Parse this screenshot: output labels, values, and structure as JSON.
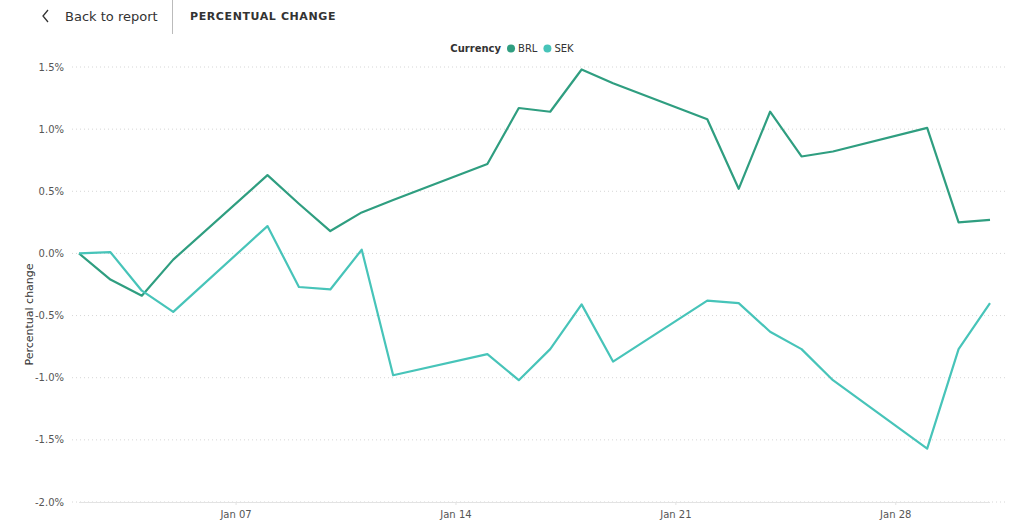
{
  "header": {
    "back": "Back to report"
  },
  "chart_data": {
    "type": "line",
    "title": "PERCENTUAL CHANGE",
    "y_label": "Percentual change",
    "legend_title": "Currency",
    "legend": "top",
    "grid": true,
    "x": [
      2,
      3,
      4,
      5,
      8,
      9,
      10,
      11,
      12,
      15,
      16,
      17,
      18,
      19,
      22,
      23,
      24,
      25,
      26,
      29,
      30,
      31
    ],
    "xlim": [
      2,
      31
    ],
    "xticks": [
      {
        "value": 7,
        "label": "Jan 07"
      },
      {
        "value": 14,
        "label": "Jan 14"
      },
      {
        "value": 21,
        "label": "Jan 21"
      },
      {
        "value": 28,
        "label": "Jan 28"
      }
    ],
    "ylim": [
      -2.0,
      1.5
    ],
    "yticks": [
      {
        "value": -2.0,
        "label": "-2.0%"
      },
      {
        "value": -1.5,
        "label": "-1.5%"
      },
      {
        "value": -1.0,
        "label": "-1.0%"
      },
      {
        "value": -0.5,
        "label": "-0.5%"
      },
      {
        "value": 0,
        "label": "0.0%"
      },
      {
        "value": 0.5,
        "label": "0.5%"
      },
      {
        "value": 1.0,
        "label": "1.0%"
      },
      {
        "value": 1.5,
        "label": "1.5%"
      }
    ],
    "series": [
      {
        "name": "BRL",
        "color": "#2f9e80",
        "values": [
          0.0,
          -0.21,
          -0.34,
          -0.05,
          0.63,
          0.4,
          0.18,
          0.33,
          0.43,
          0.72,
          1.17,
          1.14,
          1.48,
          1.37,
          1.08,
          0.52,
          1.14,
          0.78,
          0.82,
          1.01,
          0.25,
          0.27
        ]
      },
      {
        "name": "SEK",
        "color": "#47c4b9",
        "values": [
          0.0,
          0.01,
          -0.3,
          -0.47,
          0.22,
          -0.27,
          -0.29,
          0.03,
          -0.98,
          -0.81,
          -1.02,
          -0.77,
          -0.41,
          -0.87,
          -0.38,
          -0.4,
          -0.63,
          -0.77,
          -1.02,
          -1.57,
          -0.77,
          -0.4
        ]
      }
    ]
  }
}
